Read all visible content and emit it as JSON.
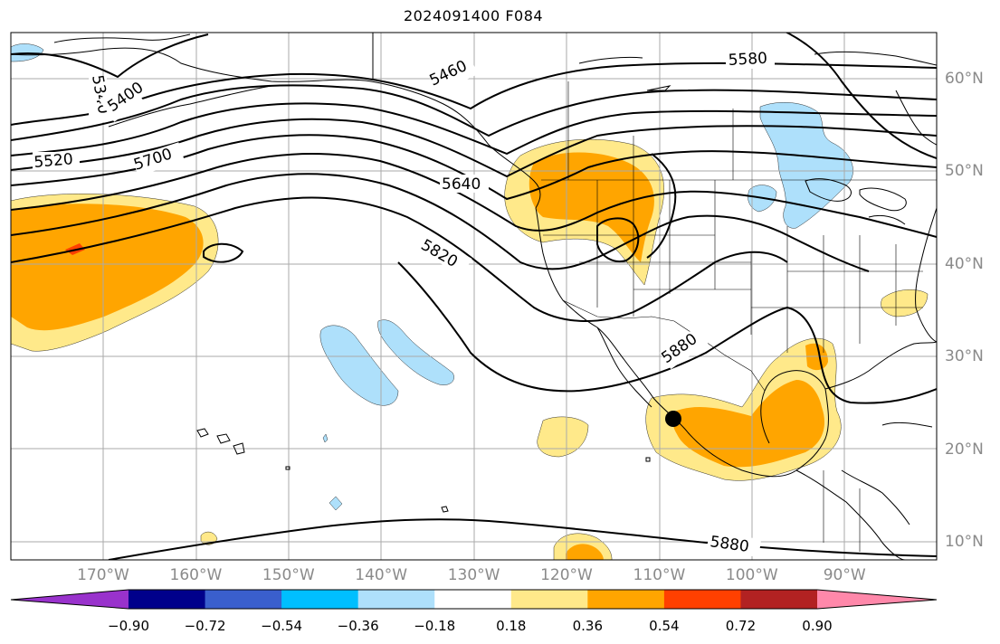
{
  "title": "2024091400 F084",
  "lon_labels": [
    {
      "text": "170°W",
      "lon": -170
    },
    {
      "text": "160°W",
      "lon": -160
    },
    {
      "text": "150°W",
      "lon": -150
    },
    {
      "text": "140°W",
      "lon": -140
    },
    {
      "text": "130°W",
      "lon": -130
    },
    {
      "text": "120°W",
      "lon": -120
    },
    {
      "text": "110°W",
      "lon": -110
    },
    {
      "text": "100°W",
      "lon": -100
    },
    {
      "text": "90°W",
      "lon": -90
    }
  ],
  "lat_labels": [
    {
      "text": "60°N",
      "lat": 60
    },
    {
      "text": "50°N",
      "lat": 50
    },
    {
      "text": "40°N",
      "lat": 40
    },
    {
      "text": "30°N",
      "lat": 30
    },
    {
      "text": "20°N",
      "lat": 20
    },
    {
      "text": "10°N",
      "lat": 10
    }
  ],
  "contour_labels": [
    "5340",
    "5400",
    "5460",
    "5520",
    "5580",
    "5640",
    "5700",
    "5820",
    "5880",
    "5880"
  ],
  "colorbar": {
    "colors": [
      "#9932cc",
      "#00008b",
      "#3a5fcd",
      "#00bfff",
      "#aee0fb",
      "#ffffff",
      "#ffe98a",
      "#ffa500",
      "#ff4000",
      "#b22222",
      "#ff88aa"
    ],
    "tick_labels": [
      "−0.90",
      "−0.72",
      "−0.54",
      "−0.36",
      "−0.18",
      "0.18",
      "0.36",
      "0.54",
      "0.72",
      "0.90"
    ]
  },
  "legend_colors": {
    "light_yellow": "#ffe98a",
    "orange": "#ffa500",
    "red": "#ff4000",
    "light_blue": "#aee0fb"
  }
}
